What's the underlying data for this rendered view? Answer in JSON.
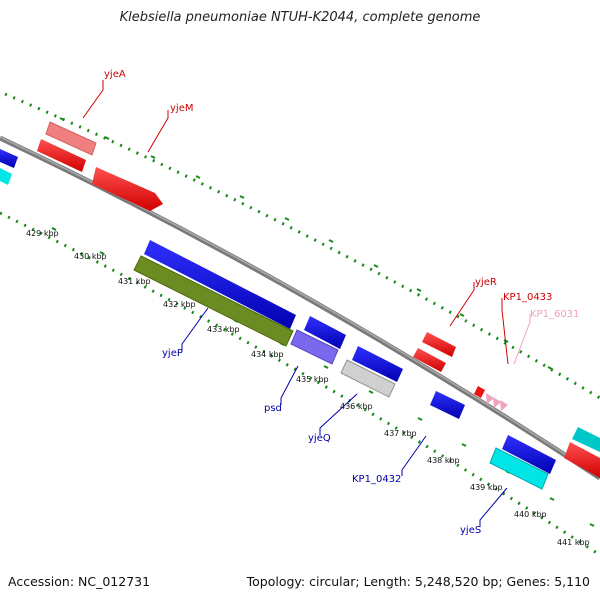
{
  "title": "Klebsiella pneumoniae NTUH-K2044, complete genome",
  "footer": {
    "accession": "Accession: NC_012731",
    "summary": "Topology: circular; Length: 5,248,520 bp; Genes: 5,110"
  },
  "kbp_labels": [
    "429 kbp",
    "430 kbp",
    "431 kbp",
    "432 kbp",
    "433 kbp",
    "434 kbp",
    "435 kbp",
    "436 kbp",
    "437 kbp",
    "438 kbp",
    "439 kbp",
    "440 kbp",
    "441 kbp"
  ],
  "genes": [
    {
      "name": "yjeA",
      "color": "#d10000"
    },
    {
      "name": "yjeM",
      "color": "#d10000"
    },
    {
      "name": "yjeR",
      "color": "#d10000"
    },
    {
      "name": "KP1_0433",
      "color": "#d10000"
    },
    {
      "name": "KP1_6031",
      "color": "#f2a0c0"
    },
    {
      "name": "yjeP",
      "color": "#0000aa"
    },
    {
      "name": "psd",
      "color": "#0000aa"
    },
    {
      "name": "yjeQ",
      "color": "#0000aa"
    },
    {
      "name": "KP1_0432",
      "color": "#0000aa"
    },
    {
      "name": "yjeS",
      "color": "#0000aa"
    }
  ]
}
